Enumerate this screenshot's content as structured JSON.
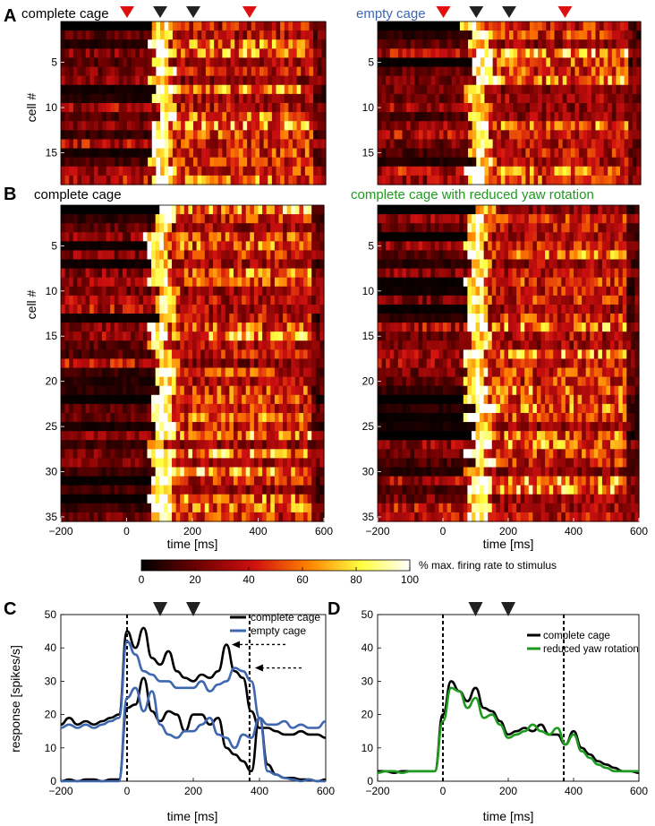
{
  "colors": {
    "complete_cage": "#000000",
    "empty_cage": "#3f67b0",
    "reduced_yaw": "#1e9a1e",
    "red_marker": "#e01010",
    "black_marker": "#222222",
    "colormap": [
      "#000000",
      "#6b0000",
      "#d01010",
      "#ff8000",
      "#ffff40",
      "#ffffff"
    ]
  },
  "colorbar": {
    "label": "% max. firing rate to stimulus",
    "ticks": [
      "0",
      "20",
      "40",
      "60",
      "80",
      "100"
    ]
  },
  "chart_data": [
    {
      "panel": "A",
      "side": "left",
      "type": "heatmap",
      "title": "complete cage",
      "ylabel": "cell #",
      "rows": 18,
      "time_range": [
        -200,
        600
      ],
      "ytick_labels": [
        "5",
        "10",
        "15"
      ],
      "markers": {
        "red": [
          0,
          370
        ],
        "black": [
          100,
          200
        ]
      }
    },
    {
      "panel": "A",
      "side": "right",
      "type": "heatmap",
      "title": "empty cage",
      "rows": 18,
      "time_range": [
        -200,
        600
      ],
      "ytick_labels": [
        "5",
        "10",
        "15"
      ],
      "markers": {
        "red": [
          0,
          370
        ],
        "black": [
          100,
          200
        ]
      }
    },
    {
      "panel": "B",
      "side": "left",
      "type": "heatmap",
      "title": "complete cage",
      "ylabel": "cell #",
      "xlabel": "time [ms]",
      "rows": 35,
      "time_range": [
        -200,
        600
      ],
      "xtick_labels": [
        "-200",
        "0",
        "200",
        "400",
        "600"
      ],
      "ytick_labels": [
        "5",
        "10",
        "15",
        "20",
        "25",
        "30",
        "35"
      ]
    },
    {
      "panel": "B",
      "side": "right",
      "type": "heatmap",
      "title": "complete cage with reduced yaw rotation",
      "xlabel": "time [ms]",
      "rows": 35,
      "time_range": [
        -200,
        600
      ],
      "xtick_labels": [
        "-200",
        "0",
        "200",
        "400",
        "600"
      ],
      "ytick_labels": [
        "5",
        "10",
        "15",
        "20",
        "25",
        "30",
        "35"
      ]
    },
    {
      "panel": "C",
      "type": "line",
      "xlabel": "time [ms]",
      "ylabel": "response [spikes/s]",
      "xlim": [
        -200,
        600
      ],
      "ylim": [
        0,
        50
      ],
      "xtick_labels": [
        "-200",
        "0",
        "200",
        "400",
        "600"
      ],
      "ytick_labels": [
        "0",
        "10",
        "20",
        "30",
        "40",
        "50"
      ],
      "vlines": [
        0,
        370
      ],
      "markers": [
        100,
        200
      ],
      "legend_position": "top-right",
      "legend": [
        "complete cage",
        "empty cage"
      ],
      "x": [
        -200,
        -175,
        -150,
        -125,
        -100,
        -75,
        -50,
        -25,
        0,
        25,
        50,
        75,
        100,
        125,
        150,
        175,
        200,
        225,
        250,
        275,
        300,
        325,
        350,
        375,
        400,
        425,
        450,
        475,
        500,
        525,
        550,
        575,
        600
      ],
      "series": [
        {
          "legend": "complete cage",
          "group": "high",
          "values": [
            17,
            19,
            17,
            18,
            17,
            18,
            19,
            20,
            45,
            40,
            46,
            37,
            35,
            39,
            33,
            31,
            30,
            32,
            31,
            33,
            41,
            33,
            31,
            21,
            16,
            16,
            15,
            14,
            14,
            15,
            14,
            14,
            13
          ]
        },
        {
          "legend": "empty cage",
          "group": "high",
          "values": [
            16,
            17,
            16,
            17,
            16,
            17,
            18,
            19,
            42,
            38,
            33,
            32,
            30,
            30,
            28,
            28,
            28,
            30,
            27,
            29,
            30,
            34,
            33,
            30,
            19,
            17,
            17,
            18,
            16,
            17,
            16,
            16,
            18
          ]
        },
        {
          "legend": "complete cage",
          "group": "low",
          "values": [
            0,
            0.5,
            0,
            0.5,
            0.5,
            0,
            0.5,
            0.5,
            22,
            23,
            31,
            21,
            18,
            21,
            20,
            15,
            20,
            20,
            17,
            19,
            10,
            8,
            6,
            3,
            19,
            5,
            2,
            1,
            1,
            0.5,
            0.5,
            0,
            0.5
          ]
        },
        {
          "legend": "empty cage",
          "group": "low",
          "values": [
            0,
            0,
            0,
            0,
            0,
            0,
            0,
            0,
            25,
            28,
            21,
            27,
            17,
            14,
            13,
            15,
            15,
            17,
            19,
            14,
            13,
            10,
            14,
            13,
            19,
            3,
            2,
            1,
            0.5,
            0,
            0.5,
            0,
            0
          ]
        }
      ],
      "arrows_at": [
        {
          "x": 300,
          "y": 41
        },
        {
          "x": 370,
          "y": 34
        }
      ]
    },
    {
      "panel": "D",
      "type": "line",
      "xlabel": "time [ms]",
      "xlim": [
        -200,
        600
      ],
      "ylim": [
        0,
        50
      ],
      "xtick_labels": [
        "-200",
        "0",
        "200",
        "400",
        "600"
      ],
      "ytick_labels": [
        "0",
        "10",
        "20",
        "30",
        "40",
        "50"
      ],
      "vlines": [
        0,
        370
      ],
      "markers": [
        100,
        200
      ],
      "legend_position": "top-right",
      "legend": [
        "complete cage",
        "reduced yaw rotation"
      ],
      "x": [
        -200,
        -175,
        -150,
        -125,
        -100,
        -75,
        -50,
        -25,
        0,
        25,
        50,
        75,
        100,
        125,
        150,
        175,
        200,
        225,
        250,
        275,
        300,
        325,
        350,
        375,
        400,
        425,
        450,
        475,
        500,
        525,
        550,
        575,
        600
      ],
      "series": [
        {
          "name": "complete cage",
          "values": [
            3,
            3,
            2.5,
            3,
            3,
            3,
            3,
            3,
            20,
            30,
            27,
            24,
            28,
            22,
            21,
            18,
            14,
            15,
            16,
            15,
            17,
            14,
            14,
            11,
            15,
            10,
            8,
            6,
            5,
            4,
            3,
            3,
            2.5
          ]
        },
        {
          "name": "reduced yaw rotation",
          "values": [
            2.5,
            3,
            3,
            2.5,
            3,
            3,
            3,
            3,
            18,
            28,
            27,
            22,
            25,
            19,
            20,
            17,
            13,
            14,
            15,
            17,
            15,
            14,
            16,
            11,
            14,
            9,
            7,
            5,
            4,
            3,
            3,
            3,
            3
          ]
        }
      ]
    }
  ]
}
